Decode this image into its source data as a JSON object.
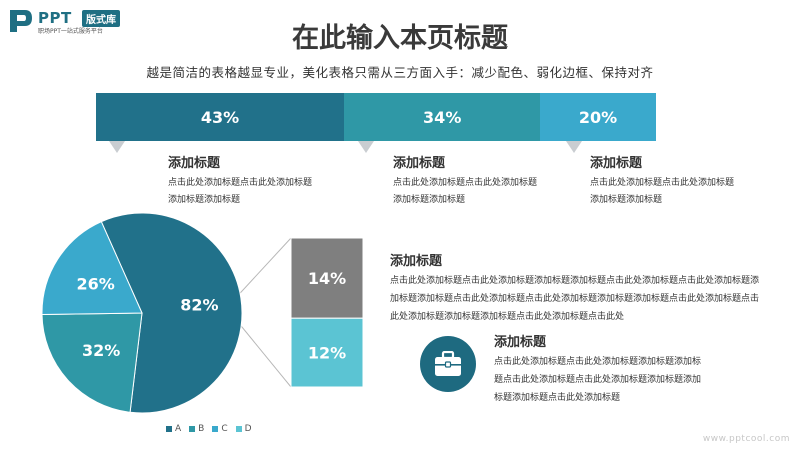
{
  "logo": {
    "brand": "PPT",
    "badge": "版式库",
    "tagline": "职场PPT一站式服务平台"
  },
  "header": {
    "title": "在此输入本页标题",
    "subtitle": "越是简洁的表格越显专业，美化表格只需从三方面入手：减少配色、弱化边框、保持对齐"
  },
  "colors": {
    "dark": "#21718a",
    "mid": "#2f98a6",
    "light": "#3aa9cc",
    "gray": "#7f7f7f",
    "cyan": "#5bc4d3"
  },
  "top_segments": [
    {
      "label": "43%",
      "value": 43,
      "color": "#21718a"
    },
    {
      "label": "34%",
      "value": 34,
      "color": "#2f98a6"
    },
    {
      "label": "20%",
      "value": 20,
      "color": "#3aa9cc"
    }
  ],
  "columns": [
    {
      "title": "添加标题",
      "desc": "点击此处添加标题点击此处添加标题添加标题添加标题"
    },
    {
      "title": "添加标题",
      "desc": "点击此处添加标题点击此处添加标题添加标题添加标题"
    },
    {
      "title": "添加标题",
      "desc": "点击此处添加标题点击此处添加标题添加标题添加标题"
    }
  ],
  "chart_data": [
    {
      "type": "pie",
      "categories": [
        "A",
        "B",
        "C",
        "D"
      ],
      "labels": [
        "82%",
        "32%",
        "26%",
        ""
      ],
      "values": [
        82,
        32,
        26,
        0
      ],
      "colors": [
        "#21718a",
        "#2f98a6",
        "#3aa9cc",
        "#5bc4d3"
      ],
      "legend_position": "bottom"
    },
    {
      "type": "bar",
      "stacked": true,
      "categories": [
        "14%",
        "12%"
      ],
      "values": [
        14,
        12
      ],
      "colors": [
        "#7f7f7f",
        "#5bc4d3"
      ]
    }
  ],
  "right_block": {
    "title": "添加标题",
    "desc": "点击此处添加标题点击此处添加标题添加标题添加标题点击此处添加标题点击此处添加标题添加标题添加标题点击此处添加标题点击此处添加标题添加标题添加标题点击此处添加标题点击此处添加标题添加标题添加标题点击此处添加标题点击此处"
  },
  "icon_block": {
    "icon": "briefcase-icon",
    "title": "添加标题",
    "desc": "点击此处添加标题点击此处添加标题添加标题添加标题点击此处添加标题点击此处添加标题添加标题添加标题添加标题点击此处添加标题"
  },
  "watermark": "www.pptcool.com"
}
